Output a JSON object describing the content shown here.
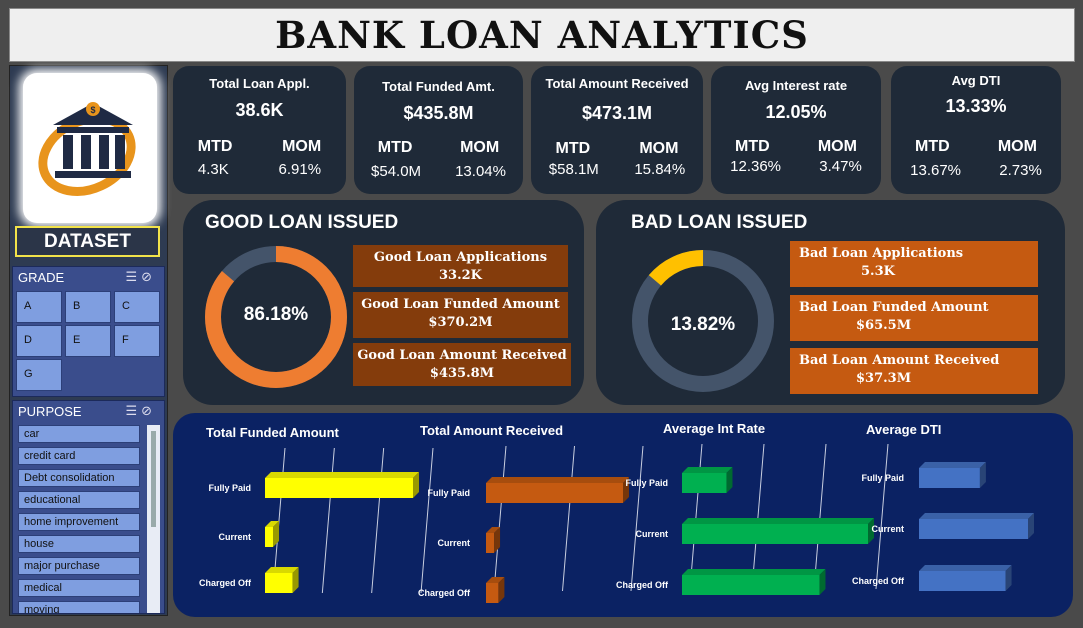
{
  "title": "BANK LOAN ANALYTICS",
  "dataset_label": "DATASET",
  "grade": {
    "header": "GRADE",
    "items": [
      "A",
      "B",
      "C",
      "D",
      "E",
      "F",
      "G"
    ]
  },
  "purpose": {
    "header": "PURPOSE",
    "items": [
      "car",
      "credit card",
      "Debt consolidation",
      "educational",
      "home improvement",
      "house",
      "major purchase",
      "medical",
      "moving"
    ]
  },
  "kpis": [
    {
      "title": "Total Loan Appl.",
      "value": "38.6K",
      "mtd_label": "MTD",
      "mtd": "4.3K",
      "mom_label": "MOM",
      "mom": "6.91%"
    },
    {
      "title": "Total Funded Amt.",
      "value": "$435.8M",
      "mtd_label": "MTD",
      "mtd": "$54.0M",
      "mom_label": "MOM",
      "mom": "13.04%"
    },
    {
      "title": "Total Amount Received",
      "value": "$473.1M",
      "mtd_label": "MTD",
      "mtd": "$58.1M",
      "mom_label": "MOM",
      "mom": "15.84%"
    },
    {
      "title": "Avg Interest rate",
      "value": "12.05%",
      "mtd_label": "MTD",
      "mtd": "12.36%",
      "mom_label": "MOM",
      "mom": "3.47%"
    },
    {
      "title": "Avg DTI",
      "value": "13.33%",
      "mtd_label": "MTD",
      "mtd": "13.67%",
      "mom_label": "MOM",
      "mom": "2.73%"
    }
  ],
  "good_loan": {
    "title": "GOOD LOAN ISSUED",
    "percent_label": "86.18%",
    "percent": 86.18,
    "color": "#ee7d31",
    "rest_color": "#44546a",
    "boxes": [
      {
        "label": "Good Loan Applications",
        "value": "33.2K"
      },
      {
        "label": "Good Loan Funded Amount",
        "value": "$370.2M"
      },
      {
        "label": "Good Loan Amount Received",
        "value": "$435.8M"
      }
    ]
  },
  "bad_loan": {
    "title": "BAD LOAN ISSUED",
    "percent_label": "13.82%",
    "percent": 13.82,
    "color": "#ffc000",
    "rest_color": "#44546a",
    "boxes": [
      {
        "label": "Bad Loan Applications",
        "value": "5.3K"
      },
      {
        "label": "Bad Loan Funded Amount",
        "value": "$65.5M"
      },
      {
        "label": "Bad Loan Amount Received",
        "value": "$37.3M"
      }
    ]
  },
  "chart_data": [
    {
      "type": "bar",
      "title": "Total Funded Amount",
      "categories": [
        "Fully Paid",
        "Current",
        "Charged Off"
      ],
      "values": [
        351.4,
        18.9,
        65.5
      ],
      "color": "#ffff00"
    },
    {
      "type": "bar",
      "title": "Total Amount Received",
      "categories": [
        "Fully Paid",
        "Current",
        "Charged Off"
      ],
      "values": [
        411.6,
        24.2,
        37.3
      ],
      "color": "#c55a11"
    },
    {
      "type": "bar",
      "title": "Average Int Rate",
      "categories": [
        "Fully Paid",
        "Current",
        "Charged Off"
      ],
      "values": [
        11.6,
        15.1,
        13.9
      ],
      "color": "#00b050"
    },
    {
      "type": "bar",
      "title": "Average DTI",
      "categories": [
        "Fully Paid",
        "Current",
        "Charged Off"
      ],
      "values": [
        13.2,
        14.7,
        14.0
      ],
      "color": "#4472c4"
    }
  ]
}
